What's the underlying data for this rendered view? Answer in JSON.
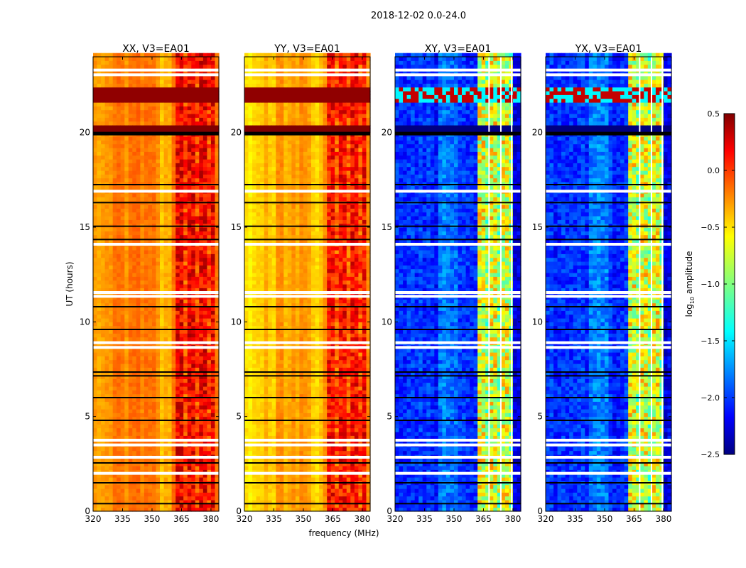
{
  "chart_data": {
    "type": "heatmap",
    "suptitle": "2018-12-02 0.0-24.0",
    "xlabel": "frequency (MHz)",
    "ylabel": "UT (hours)",
    "xlim": [
      320,
      384
    ],
    "ylim": [
      0,
      24
    ],
    "xticks": [
      "320",
      "335",
      "350",
      "365",
      "380"
    ],
    "xtick_values": [
      320,
      335,
      350,
      365,
      380
    ],
    "yticks": [
      "0",
      "5",
      "10",
      "15",
      "20"
    ],
    "ytick_values": [
      0,
      5,
      10,
      15,
      20
    ],
    "panels": [
      {
        "title": "XX, V3=EA01",
        "kind": "parallel",
        "base_level": -0.25,
        "band_level": 0.15
      },
      {
        "title": "YY, V3=EA01",
        "kind": "parallel",
        "base_level": -0.4,
        "band_level": 0.1
      },
      {
        "title": "XY, V3=EA01",
        "kind": "cross",
        "base_level": -2.0,
        "band_level": -0.7
      },
      {
        "title": "YX, V3=EA01",
        "kind": "cross",
        "base_level": -2.0,
        "band_level": -0.7
      }
    ],
    "rfi_band_mhz": [
      362,
      382
    ],
    "flagged_white_hours": [
      23.3,
      23.05,
      16.9,
      14.1,
      11.55,
      11.35,
      8.9,
      8.65,
      3.75,
      3.5,
      2.85,
      2.0
    ],
    "flagged_black_hours": [
      20.0,
      17.25,
      16.3,
      15.05,
      14.35,
      10.8,
      9.6,
      7.35,
      7.15,
      6.0,
      4.8,
      2.55,
      1.5,
      0.4
    ],
    "colorbar": {
      "label": "log10 amplitude",
      "colormap": "jet",
      "range": [
        -2.5,
        0.5
      ],
      "ticks": [
        "0.5",
        "0.0",
        "−0.5",
        "−1.0",
        "−1.5",
        "−2.0",
        "−2.5"
      ],
      "tick_values": [
        0.5,
        0.0,
        -0.5,
        -1.0,
        -1.5,
        -2.0,
        -2.5
      ]
    }
  }
}
